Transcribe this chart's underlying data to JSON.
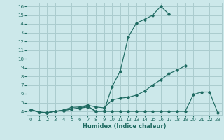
{
  "xlabel": "Humidex (Indice chaleur)",
  "x": [
    0,
    1,
    2,
    3,
    4,
    5,
    6,
    7,
    8,
    9,
    10,
    11,
    12,
    13,
    14,
    15,
    16,
    17,
    18,
    19,
    20,
    21,
    22,
    23
  ],
  "line1": [
    4.2,
    3.9,
    3.85,
    4.0,
    4.1,
    4.25,
    4.4,
    4.6,
    4.0,
    4.05,
    6.8,
    8.6,
    12.5,
    14.1,
    14.5,
    15.0,
    16.0,
    15.1,
    null,
    null,
    null,
    null,
    null,
    null
  ],
  "line2": [
    4.2,
    3.9,
    3.85,
    4.0,
    4.15,
    4.45,
    4.5,
    4.7,
    4.5,
    4.4,
    5.3,
    5.5,
    5.6,
    5.85,
    6.3,
    7.0,
    7.6,
    8.3,
    8.7,
    9.2,
    null,
    null,
    null,
    null
  ],
  "line3": [
    4.2,
    3.9,
    3.85,
    4.0,
    4.1,
    4.25,
    4.35,
    4.5,
    4.0,
    4.0,
    4.0,
    4.0,
    4.0,
    4.0,
    4.0,
    4.0,
    4.0,
    4.0,
    4.0,
    4.0,
    5.9,
    6.2,
    6.2,
    3.85
  ],
  "bg_color": "#cce8ea",
  "grid_color": "#aaccce",
  "line_color": "#1f6b62",
  "ylim": [
    3.6,
    16.4
  ],
  "xlim": [
    -0.5,
    23.5
  ],
  "yticks": [
    4,
    5,
    6,
    7,
    8,
    9,
    10,
    11,
    12,
    13,
    14,
    15,
    16
  ],
  "xticks": [
    0,
    1,
    2,
    3,
    4,
    5,
    6,
    7,
    8,
    9,
    10,
    11,
    12,
    13,
    14,
    15,
    16,
    17,
    18,
    19,
    20,
    21,
    22,
    23
  ],
  "xlabel_fontsize": 6.0,
  "tick_fontsize": 5.0
}
